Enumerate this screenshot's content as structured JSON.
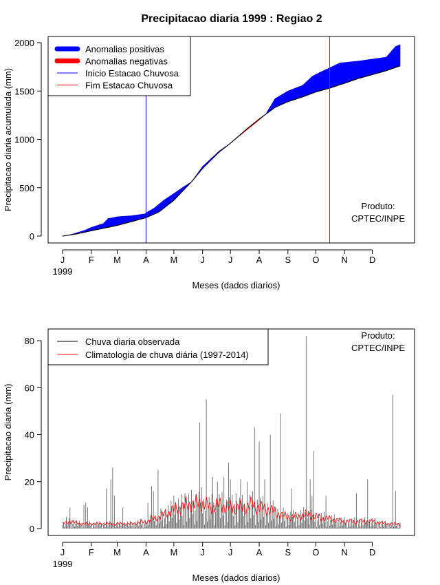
{
  "figure": {
    "title": "Precipitacao diaria 1999 : Regiao 2"
  },
  "chart_data": [
    {
      "type": "area",
      "title": "Precipitacao diaria 1999 : Regiao 2",
      "xlabel": "Meses (dados diarios)",
      "ylabel": "Precipitacao diaria acumulada (mm)",
      "xlim": [
        1,
        365
      ],
      "ylim": [
        0,
        2000
      ],
      "x_ticks": [
        {
          "day": 1,
          "label": "J"
        },
        {
          "day": 32,
          "label": "F"
        },
        {
          "day": 60,
          "label": "M"
        },
        {
          "day": 91,
          "label": "A"
        },
        {
          "day": 121,
          "label": "M"
        },
        {
          "day": 152,
          "label": "J"
        },
        {
          "day": 182,
          "label": "J"
        },
        {
          "day": 213,
          "label": "A"
        },
        {
          "day": 244,
          "label": "S"
        },
        {
          "day": 274,
          "label": "O"
        },
        {
          "day": 305,
          "label": "N"
        },
        {
          "day": 335,
          "label": "D"
        }
      ],
      "year_label": "1999",
      "y_ticks": [
        0,
        500,
        1000,
        1500,
        2000
      ],
      "legend": [
        {
          "label": "Anomalias positivas",
          "color": "#0000ff",
          "style": "thick"
        },
        {
          "label": "Anomalias negativas",
          "color": "#ff0000",
          "style": "thick"
        },
        {
          "label": "Inicio Estacao Chuvosa",
          "color": "#0000ff",
          "style": "thin"
        },
        {
          "label": "Fim Estacao Chuvosa",
          "color": "#ff0000",
          "style": "thin"
        }
      ],
      "legend_position": "top-left",
      "annotation": [
        "Produto:",
        "CPTEC/INPE"
      ],
      "rain_season_start_day": 91,
      "rain_season_end_day": 289,
      "climatology_cumulative": [
        [
          1,
          0
        ],
        [
          15,
          20
        ],
        [
          32,
          55
        ],
        [
          60,
          110
        ],
        [
          91,
          190
        ],
        [
          105,
          250
        ],
        [
          121,
          370
        ],
        [
          140,
          560
        ],
        [
          152,
          700
        ],
        [
          170,
          870
        ],
        [
          182,
          960
        ],
        [
          200,
          1110
        ],
        [
          213,
          1210
        ],
        [
          230,
          1330
        ],
        [
          244,
          1390
        ],
        [
          260,
          1440
        ],
        [
          274,
          1490
        ],
        [
          289,
          1530
        ],
        [
          305,
          1580
        ],
        [
          320,
          1630
        ],
        [
          335,
          1670
        ],
        [
          350,
          1710
        ],
        [
          365,
          1760
        ]
      ],
      "observed_cumulative": [
        [
          1,
          0
        ],
        [
          10,
          15
        ],
        [
          25,
          60
        ],
        [
          32,
          90
        ],
        [
          45,
          130
        ],
        [
          50,
          180
        ],
        [
          60,
          200
        ],
        [
          75,
          210
        ],
        [
          90,
          230
        ],
        [
          91,
          240
        ],
        [
          100,
          290
        ],
        [
          110,
          370
        ],
        [
          121,
          440
        ],
        [
          130,
          500
        ],
        [
          140,
          560
        ],
        [
          152,
          720
        ],
        [
          170,
          880
        ],
        [
          182,
          960
        ],
        [
          200,
          1100
        ],
        [
          213,
          1200
        ],
        [
          220,
          1260
        ],
        [
          230,
          1420
        ],
        [
          244,
          1500
        ],
        [
          260,
          1560
        ],
        [
          270,
          1650
        ],
        [
          280,
          1700
        ],
        [
          289,
          1740
        ],
        [
          300,
          1790
        ],
        [
          310,
          1800
        ],
        [
          320,
          1810
        ],
        [
          335,
          1830
        ],
        [
          350,
          1850
        ],
        [
          360,
          1960
        ],
        [
          365,
          1980
        ]
      ]
    },
    {
      "type": "bar",
      "xlabel": "Meses (dados diarios)",
      "ylabel": "Precipitacao diaria (mm)",
      "xlim": [
        1,
        365
      ],
      "ylim": [
        0,
        85
      ],
      "x_ticks": [
        {
          "day": 1,
          "label": "J"
        },
        {
          "day": 32,
          "label": "F"
        },
        {
          "day": 60,
          "label": "M"
        },
        {
          "day": 91,
          "label": "A"
        },
        {
          "day": 121,
          "label": "M"
        },
        {
          "day": 152,
          "label": "J"
        },
        {
          "day": 182,
          "label": "J"
        },
        {
          "day": 213,
          "label": "A"
        },
        {
          "day": 244,
          "label": "S"
        },
        {
          "day": 274,
          "label": "O"
        },
        {
          "day": 305,
          "label": "N"
        },
        {
          "day": 335,
          "label": "D"
        }
      ],
      "year_label": "1999",
      "y_ticks": [
        0,
        20,
        40,
        60,
        80
      ],
      "legend": [
        {
          "label": "Chuva diaria observada",
          "color": "#000000"
        },
        {
          "label": "Climatologia de chuva diária (1997-2014)",
          "color": "#ff0000"
        }
      ],
      "legend_position": "top-left",
      "annotation": [
        "Produto:",
        "CPTEC/INPE"
      ],
      "observed_peaks": [
        [
          5,
          5
        ],
        [
          9,
          9
        ],
        [
          24,
          10
        ],
        [
          26,
          11
        ],
        [
          28,
          9
        ],
        [
          48,
          17
        ],
        [
          53,
          21
        ],
        [
          55,
          26
        ],
        [
          57,
          14
        ],
        [
          66,
          9
        ],
        [
          93,
          11
        ],
        [
          97,
          18
        ],
        [
          99,
          16
        ],
        [
          104,
          25
        ],
        [
          121,
          14
        ],
        [
          133,
          15
        ],
        [
          149,
          45
        ],
        [
          156,
          55
        ],
        [
          163,
          22
        ],
        [
          168,
          20
        ],
        [
          175,
          22
        ],
        [
          180,
          28
        ],
        [
          182,
          21
        ],
        [
          188,
          15
        ],
        [
          193,
          21
        ],
        [
          200,
          20
        ],
        [
          208,
          43
        ],
        [
          213,
          37
        ],
        [
          219,
          21
        ],
        [
          225,
          40
        ],
        [
          236,
          49
        ],
        [
          248,
          17
        ],
        [
          264,
          82
        ],
        [
          268,
          21
        ],
        [
          270,
          14
        ],
        [
          272,
          33
        ],
        [
          285,
          14
        ],
        [
          318,
          15
        ],
        [
          330,
          21
        ],
        [
          357,
          57
        ],
        [
          360,
          16
        ]
      ],
      "climatology_daily": [
        [
          1,
          2
        ],
        [
          10,
          3
        ],
        [
          20,
          2
        ],
        [
          32,
          2
        ],
        [
          45,
          2
        ],
        [
          60,
          2
        ],
        [
          75,
          2
        ],
        [
          91,
          3
        ],
        [
          105,
          5
        ],
        [
          121,
          8
        ],
        [
          135,
          10
        ],
        [
          152,
          11
        ],
        [
          160,
          9
        ],
        [
          170,
          10
        ],
        [
          182,
          9
        ],
        [
          195,
          9
        ],
        [
          205,
          10
        ],
        [
          213,
          9
        ],
        [
          225,
          8
        ],
        [
          235,
          6
        ],
        [
          244,
          5
        ],
        [
          255,
          5
        ],
        [
          264,
          6
        ],
        [
          274,
          5
        ],
        [
          290,
          4
        ],
        [
          305,
          3
        ],
        [
          320,
          3
        ],
        [
          335,
          3
        ],
        [
          350,
          2
        ],
        [
          365,
          2
        ]
      ]
    }
  ]
}
